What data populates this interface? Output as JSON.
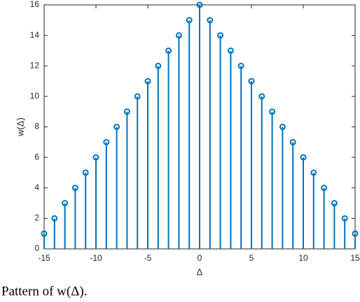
{
  "chart_data": {
    "type": "stem",
    "x": [
      -15,
      -14,
      -13,
      -12,
      -11,
      -10,
      -9,
      -8,
      -7,
      -6,
      -5,
      -4,
      -3,
      -2,
      -1,
      0,
      1,
      2,
      3,
      4,
      5,
      6,
      7,
      8,
      9,
      10,
      11,
      12,
      13,
      14,
      15
    ],
    "series": [
      {
        "color": "#0072bd",
        "values": [
          1,
          2,
          3,
          4,
          5,
          6,
          7,
          8,
          9,
          10,
          11,
          12,
          13,
          14,
          15,
          16,
          15,
          14,
          13,
          12,
          11,
          10,
          9,
          8,
          7,
          6,
          5,
          4,
          3,
          2,
          1
        ]
      }
    ],
    "xlim": [
      -15,
      15
    ],
    "xticks": [
      -15,
      -10,
      -5,
      0,
      5,
      10,
      15
    ],
    "ylim": [
      0,
      16
    ],
    "yticks": [
      0,
      2,
      4,
      6,
      8,
      10,
      12,
      14,
      16
    ],
    "xlabel": "Δ",
    "ylabel": "w(Δ)"
  },
  "caption": "Pattern of w(Δ)."
}
